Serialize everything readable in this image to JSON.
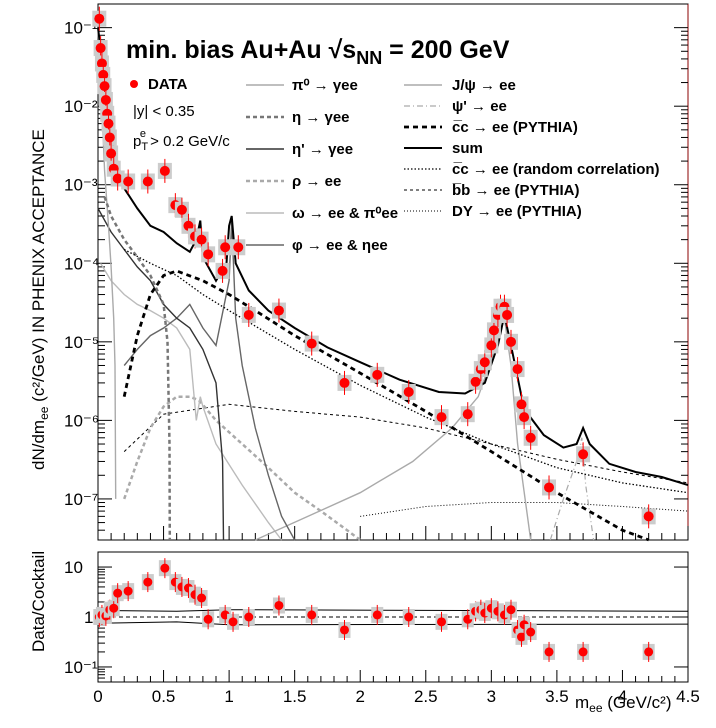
{
  "chart_data": [
    {
      "panel": "main",
      "type": "scatter",
      "title": "min. bias Au+Au √s",
      "title_sub": "NN",
      "title_tail": " = 200 GeV",
      "ylabel": "dN/dm",
      "ylabel_sub": "ee",
      "ylabel_tail": " (c²/GeV) IN PHENIX ACCEPTANCE",
      "xlim": [
        0,
        4.5
      ],
      "ylim": [
        3e-08,
        0.2
      ],
      "yscale": "log",
      "y_tick_labels": [
        "10⁻⁷",
        "10⁻⁶",
        "10⁻⁵",
        "10⁻⁴",
        "10⁻³",
        "10⁻²",
        "10⁻¹"
      ],
      "info": {
        "rapidity": "|y| < 0.35",
        "pt_cut": "p",
        "pt_cut_sub": "T",
        "pt_cut_sup": "e",
        "pt_cut_tail": " > 0.2 GeV/c"
      },
      "legend_data": "DATA",
      "legend": [
        {
          "key": "pi0",
          "label": "π⁰ → γee",
          "color": "#aaaaaa",
          "style": "solid"
        },
        {
          "key": "eta",
          "label": "η → γee",
          "color": "#777777",
          "style": "dashed"
        },
        {
          "key": "etap",
          "label": "η' → γee",
          "color": "#333333",
          "style": "solid"
        },
        {
          "key": "rho",
          "label": "ρ → ee",
          "color": "#aaaaaa",
          "style": "dashed"
        },
        {
          "key": "omega",
          "label": "ω → ee & π⁰ee",
          "color": "#bbbbbb",
          "style": "solid"
        },
        {
          "key": "phi",
          "label": "φ → ee & ηee",
          "color": "#666666",
          "style": "solid"
        },
        {
          "key": "jpsi",
          "label": "J/ψ → ee",
          "color": "#aaaaaa",
          "style": "solid"
        },
        {
          "key": "psip",
          "label": "ψ' → ee",
          "color": "#aaaaaa",
          "style": "dashdot"
        },
        {
          "key": "ccbar",
          "label": "c̅c → ee (PYTHIA)",
          "color": "#000000",
          "style": "bold-dashed"
        },
        {
          "key": "sum",
          "label": "sum",
          "color": "#000000",
          "style": "solid"
        },
        {
          "key": "ccrand",
          "label": "c̅c → ee (random correlation)",
          "color": "#000000",
          "style": "dotted"
        },
        {
          "key": "bbbar",
          "label": "b̅b → ee (PYTHIA)",
          "color": "#000000",
          "style": "fine-dashed"
        },
        {
          "key": "dy",
          "label": "DY → ee (PYTHIA)",
          "color": "#000000",
          "style": "fine-dotted"
        }
      ],
      "data_points": [
        {
          "x": 0.01,
          "y": 0.13
        },
        {
          "x": 0.02,
          "y": 0.055
        },
        {
          "x": 0.03,
          "y": 0.035
        },
        {
          "x": 0.04,
          "y": 0.025
        },
        {
          "x": 0.05,
          "y": 0.018
        },
        {
          "x": 0.06,
          "y": 0.012
        },
        {
          "x": 0.07,
          "y": 0.008
        },
        {
          "x": 0.08,
          "y": 0.006
        },
        {
          "x": 0.09,
          "y": 0.004
        },
        {
          "x": 0.1,
          "y": 0.0025
        },
        {
          "x": 0.12,
          "y": 0.0016
        },
        {
          "x": 0.15,
          "y": 0.0012
        },
        {
          "x": 0.23,
          "y": 0.0011
        },
        {
          "x": 0.38,
          "y": 0.0011
        },
        {
          "x": 0.51,
          "y": 0.0015
        },
        {
          "x": 0.59,
          "y": 0.00055
        },
        {
          "x": 0.64,
          "y": 0.00048
        },
        {
          "x": 0.69,
          "y": 0.0003
        },
        {
          "x": 0.74,
          "y": 0.00022
        },
        {
          "x": 0.79,
          "y": 0.0002
        },
        {
          "x": 0.84,
          "y": 0.00013
        },
        {
          "x": 0.97,
          "y": 0.00016
        },
        {
          "x": 1.07,
          "y": 0.00016
        },
        {
          "x": 0.95,
          "y": 8e-05
        },
        {
          "x": 1.15,
          "y": 2.2e-05
        },
        {
          "x": 1.38,
          "y": 2.5e-05
        },
        {
          "x": 1.63,
          "y": 9.5e-06
        },
        {
          "x": 1.88,
          "y": 3e-06
        },
        {
          "x": 2.13,
          "y": 3.8e-06
        },
        {
          "x": 2.37,
          "y": 2.3e-06
        },
        {
          "x": 2.62,
          "y": 1.1e-06
        },
        {
          "x": 2.82,
          "y": 1.2e-06
        },
        {
          "x": 2.88,
          "y": 3.1e-06
        },
        {
          "x": 2.92,
          "y": 4.5e-06
        },
        {
          "x": 2.95,
          "y": 5.5e-06
        },
        {
          "x": 3.0,
          "y": 9e-06
        },
        {
          "x": 3.02,
          "y": 1.4e-05
        },
        {
          "x": 3.05,
          "y": 2.2e-05
        },
        {
          "x": 3.07,
          "y": 2.8e-05
        },
        {
          "x": 3.1,
          "y": 2.8e-05
        },
        {
          "x": 3.12,
          "y": 2.2e-05
        },
        {
          "x": 3.15,
          "y": 1e-05
        },
        {
          "x": 3.2,
          "y": 4.5e-06
        },
        {
          "x": 3.23,
          "y": 1.6e-06
        },
        {
          "x": 3.25,
          "y": 1.1e-06
        },
        {
          "x": 3.3,
          "y": 6e-07
        },
        {
          "x": 3.44,
          "y": 1.4e-07
        },
        {
          "x": 3.7,
          "y": 3.7e-07
        },
        {
          "x": 4.2,
          "y": 6e-08
        }
      ],
      "curves": {
        "sum": [
          [
            0.0,
            0.1
          ],
          [
            0.05,
            0.02
          ],
          [
            0.1,
            0.004
          ],
          [
            0.2,
            0.0009
          ],
          [
            0.3,
            0.0005
          ],
          [
            0.4,
            0.0003
          ],
          [
            0.5,
            0.00025
          ],
          [
            0.6,
            0.00018
          ],
          [
            0.7,
            0.00014
          ],
          [
            0.75,
            0.0002
          ],
          [
            0.78,
            0.00035
          ],
          [
            0.8,
            0.00012
          ],
          [
            0.9,
            6e-05
          ],
          [
            0.98,
            0.0001
          ],
          [
            1.0,
            0.0003
          ],
          [
            1.02,
            0.0004
          ],
          [
            1.05,
            0.0001
          ],
          [
            1.15,
            4.5e-05
          ],
          [
            1.3,
            2.5e-05
          ],
          [
            1.5,
            1.5e-05
          ],
          [
            1.75,
            8.5e-06
          ],
          [
            2.0,
            5.5e-06
          ],
          [
            2.3,
            3.3e-06
          ],
          [
            2.6,
            2.3e-06
          ],
          [
            2.8,
            2.2e-06
          ],
          [
            2.95,
            3e-06
          ],
          [
            3.05,
            9e-06
          ],
          [
            3.1,
            2.2e-05
          ],
          [
            3.15,
            9e-06
          ],
          [
            3.25,
            1.4e-06
          ],
          [
            3.4,
            6.5e-07
          ],
          [
            3.55,
            4.5e-07
          ],
          [
            3.65,
            5e-07
          ],
          [
            3.7,
            8e-07
          ],
          [
            3.75,
            5e-07
          ],
          [
            3.9,
            2.8e-07
          ],
          [
            4.1,
            2.2e-07
          ],
          [
            4.3,
            1.9e-07
          ],
          [
            4.5,
            1.5e-07
          ]
        ],
        "pi0": [
          [
            0.0,
            0.1
          ],
          [
            0.03,
            0.01
          ],
          [
            0.05,
            0.0015
          ],
          [
            0.08,
            0.0003
          ],
          [
            0.1,
            9e-05
          ],
          [
            0.12,
            2e-05
          ],
          [
            0.13,
            5e-06
          ],
          [
            0.135,
            1e-07
          ]
        ],
        "eta": [
          [
            0.05,
            0.0007
          ],
          [
            0.1,
            0.0004
          ],
          [
            0.2,
            0.0002
          ],
          [
            0.3,
            0.00012
          ],
          [
            0.4,
            7e-05
          ],
          [
            0.5,
            3e-05
          ],
          [
            0.53,
            1e-05
          ],
          [
            0.545,
            5e-07
          ],
          [
            0.548,
            3e-08
          ]
        ],
        "etap": [
          [
            0.0,
            0.0005
          ],
          [
            0.1,
            0.00025
          ],
          [
            0.2,
            0.00015
          ],
          [
            0.3,
            9e-05
          ],
          [
            0.4,
            6e-05
          ],
          [
            0.5,
            3e-05
          ],
          [
            0.6,
            2e-05
          ],
          [
            0.7,
            1.5e-05
          ],
          [
            0.8,
            8e-06
          ],
          [
            0.9,
            3e-06
          ],
          [
            0.95,
            3e-07
          ],
          [
            0.957,
            3e-08
          ]
        ],
        "rho": [
          [
            0.2,
            1e-07
          ],
          [
            0.3,
            3e-07
          ],
          [
            0.4,
            8e-07
          ],
          [
            0.5,
            1.5e-06
          ],
          [
            0.6,
            2e-06
          ],
          [
            0.7,
            2e-06
          ],
          [
            0.77,
            1.8e-06
          ],
          [
            0.9,
            1e-06
          ],
          [
            1.1,
            5e-07
          ],
          [
            1.3,
            2.5e-07
          ],
          [
            1.5,
            1.2e-07
          ],
          [
            1.7,
            7e-08
          ],
          [
            1.9,
            4e-08
          ],
          [
            2.0,
            3e-08
          ]
        ],
        "omega": [
          [
            0.02,
            0.0001
          ],
          [
            0.1,
            6e-05
          ],
          [
            0.2,
            4e-05
          ],
          [
            0.3,
            3e-05
          ],
          [
            0.4,
            2.5e-05
          ],
          [
            0.5,
            2e-05
          ],
          [
            0.6,
            1.5e-05
          ],
          [
            0.7,
            8e-06
          ],
          [
            0.75,
            1e-06
          ],
          [
            0.78,
            2e-06
          ],
          [
            0.8,
            1.5e-06
          ],
          [
            0.9,
            5e-07
          ],
          [
            1.1,
            1.5e-07
          ],
          [
            1.3,
            5e-08
          ],
          [
            1.4,
            3e-08
          ]
        ],
        "phi": [
          [
            0.2,
            5e-06
          ],
          [
            0.3,
            8e-06
          ],
          [
            0.4,
            1.2e-05
          ],
          [
            0.5,
            1.5e-05
          ],
          [
            0.6,
            2e-05
          ],
          [
            0.7,
            3e-05
          ],
          [
            0.8,
            1.5e-05
          ],
          [
            0.9,
            9e-06
          ],
          [
            1.0,
            6e-05
          ],
          [
            1.02,
            0.00035
          ],
          [
            1.05,
            2e-05
          ],
          [
            1.1,
            5e-06
          ],
          [
            1.2,
            8e-07
          ],
          [
            1.3,
            2e-07
          ],
          [
            1.4,
            6e-08
          ],
          [
            1.5,
            3e-08
          ]
        ],
        "jpsi": [
          [
            1.2,
            3e-08
          ],
          [
            1.6,
            6e-08
          ],
          [
            2.0,
            1.2e-07
          ],
          [
            2.4,
            3e-07
          ],
          [
            2.7,
            8e-07
          ],
          [
            2.9,
            2e-06
          ],
          [
            3.0,
            6e-06
          ],
          [
            3.1,
            2e-05
          ],
          [
            3.15,
            5e-06
          ],
          [
            3.2,
            5e-07
          ],
          [
            3.3,
            3e-08
          ]
        ],
        "psip": [
          [
            3.45,
            3e-08
          ],
          [
            3.55,
            1e-07
          ],
          [
            3.65,
            3e-07
          ],
          [
            3.69,
            6e-07
          ],
          [
            3.72,
            1.5e-07
          ],
          [
            3.78,
            3e-08
          ]
        ],
        "ccbar": [
          [
            0.2,
            2e-06
          ],
          [
            0.3,
            1.2e-05
          ],
          [
            0.4,
            4e-05
          ],
          [
            0.5,
            7e-05
          ],
          [
            0.6,
            8e-05
          ],
          [
            0.8,
            6e-05
          ],
          [
            1.0,
            4e-05
          ],
          [
            1.2,
            2.5e-05
          ],
          [
            1.5,
            1.2e-05
          ],
          [
            2.0,
            4e-06
          ],
          [
            2.5,
            1.3e-06
          ],
          [
            3.0,
            4e-07
          ],
          [
            3.5,
            1.2e-07
          ],
          [
            4.0,
            4e-08
          ],
          [
            4.2,
            3e-08
          ]
        ],
        "ccrand": [
          [
            0.2,
            0.00015
          ],
          [
            0.4,
            0.0001
          ],
          [
            0.6,
            7e-05
          ],
          [
            0.8,
            4e-05
          ],
          [
            1.0,
            2.5e-05
          ],
          [
            1.5,
            8e-06
          ],
          [
            2.0,
            2.8e-06
          ],
          [
            2.5,
            1.1e-06
          ],
          [
            3.0,
            5e-07
          ],
          [
            3.5,
            2.5e-07
          ],
          [
            4.0,
            1.6e-07
          ],
          [
            4.5,
            1.2e-07
          ]
        ],
        "bbbar": [
          [
            0.2,
            4e-07
          ],
          [
            0.5,
            1.2e-06
          ],
          [
            1.0,
            1.6e-06
          ],
          [
            1.5,
            1.3e-06
          ],
          [
            2.0,
            1.1e-06
          ],
          [
            2.5,
            8e-07
          ],
          [
            3.0,
            5e-07
          ],
          [
            3.5,
            3.2e-07
          ],
          [
            4.0,
            2.2e-07
          ],
          [
            4.5,
            1.6e-07
          ]
        ],
        "dy": [
          [
            2.0,
            6e-08
          ],
          [
            2.5,
            8e-08
          ],
          [
            3.0,
            9e-08
          ],
          [
            3.5,
            9e-08
          ],
          [
            4.0,
            8e-08
          ],
          [
            4.5,
            7e-08
          ]
        ]
      }
    },
    {
      "panel": "ratio",
      "type": "scatter",
      "ylabel": "Data/Cocktail",
      "xlabel": "m",
      "xlabel_sub": "ee",
      "xlabel_tail": " (GeV/c²)",
      "xlim": [
        0,
        4.5
      ],
      "ylim": [
        0.05,
        20
      ],
      "yscale": "log",
      "x_ticks": [
        0,
        0.5,
        1,
        1.5,
        2,
        2.5,
        3,
        3.5,
        4,
        4.5
      ],
      "x_tick_labels": [
        "0",
        "0.5",
        "1",
        "1.5",
        "2",
        "2.5",
        "3",
        "3.5",
        "4",
        "4.5"
      ],
      "y_ticks": [
        0.1,
        1,
        10
      ],
      "y_tick_labels": [
        "10⁻¹",
        "1",
        "10"
      ],
      "points": [
        {
          "x": 0.01,
          "y": 1.0
        },
        {
          "x": 0.03,
          "y": 1.1
        },
        {
          "x": 0.06,
          "y": 1.05
        },
        {
          "x": 0.09,
          "y": 1.4
        },
        {
          "x": 0.12,
          "y": 1.5
        },
        {
          "x": 0.15,
          "y": 3.0
        },
        {
          "x": 0.23,
          "y": 3.3
        },
        {
          "x": 0.38,
          "y": 5.0
        },
        {
          "x": 0.51,
          "y": 9.5
        },
        {
          "x": 0.59,
          "y": 5.0
        },
        {
          "x": 0.64,
          "y": 4.0
        },
        {
          "x": 0.69,
          "y": 3.8
        },
        {
          "x": 0.74,
          "y": 2.8
        },
        {
          "x": 0.79,
          "y": 2.4
        },
        {
          "x": 0.84,
          "y": 0.9
        },
        {
          "x": 0.97,
          "y": 1.1
        },
        {
          "x": 1.03,
          "y": 0.8
        },
        {
          "x": 1.15,
          "y": 1.0
        },
        {
          "x": 1.38,
          "y": 1.7
        },
        {
          "x": 1.63,
          "y": 1.1
        },
        {
          "x": 1.88,
          "y": 0.55
        },
        {
          "x": 2.13,
          "y": 1.1
        },
        {
          "x": 2.37,
          "y": 1.0
        },
        {
          "x": 2.62,
          "y": 0.8
        },
        {
          "x": 2.82,
          "y": 0.9
        },
        {
          "x": 2.88,
          "y": 1.3
        },
        {
          "x": 2.92,
          "y": 1.4
        },
        {
          "x": 2.95,
          "y": 1.2
        },
        {
          "x": 3.0,
          "y": 1.5
        },
        {
          "x": 3.05,
          "y": 1.3
        },
        {
          "x": 3.1,
          "y": 1.1
        },
        {
          "x": 3.15,
          "y": 1.4
        },
        {
          "x": 3.2,
          "y": 0.55
        },
        {
          "x": 3.23,
          "y": 0.4
        },
        {
          "x": 3.25,
          "y": 0.7
        },
        {
          "x": 3.3,
          "y": 0.5
        },
        {
          "x": 3.44,
          "y": 0.2
        },
        {
          "x": 3.7,
          "y": 0.2
        },
        {
          "x": 4.2,
          "y": 0.2
        }
      ]
    }
  ]
}
